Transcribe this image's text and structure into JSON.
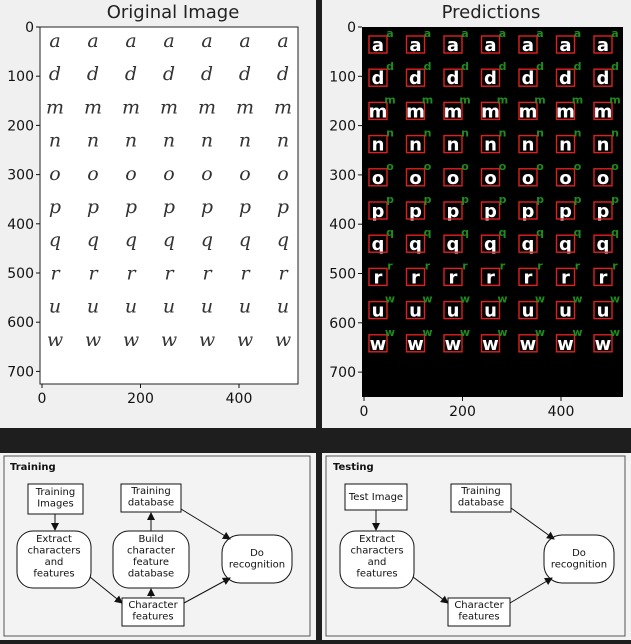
{
  "left_plot": {
    "title": "Original Image",
    "y_ticks": [
      "0",
      "100",
      "200",
      "300",
      "400",
      "500",
      "600",
      "700"
    ],
    "x_ticks": [
      "0",
      "200",
      "400"
    ],
    "rows": [
      "a",
      "d",
      "m",
      "n",
      "o",
      "p",
      "q",
      "r",
      "u",
      "w"
    ],
    "columns_per_row": 7
  },
  "right_plot": {
    "title": "Predictions",
    "y_ticks": [
      "0",
      "100",
      "200",
      "300",
      "400",
      "500",
      "600",
      "700"
    ],
    "x_ticks": [
      "0",
      "200",
      "400"
    ],
    "prediction_labels": [
      "a",
      "d",
      "m",
      "n",
      "o",
      "p",
      "q",
      "r",
      "w",
      "w"
    ],
    "colors": {
      "background": "#000000",
      "box": "#e02020",
      "label": "#1f8a1f",
      "glyph": "#ffffff"
    }
  },
  "training": {
    "title": "Training",
    "training_images": "Training\nImages",
    "extract": "Extract\ncharacters\nand\nfeatures",
    "training_db": "Training\ndatabase",
    "build_db": "Build\ncharacter\nfeature\ndatabase",
    "recognition": "Do\nrecognition",
    "features": "Character\nfeatures"
  },
  "testing": {
    "title": "Testing",
    "test_image": "Test Image",
    "extract": "Extract\ncharacters\nand\nfeatures",
    "training_db": "Training\ndatabase",
    "recognition": "Do\nrecognition",
    "features": "Character\nfeatures"
  }
}
